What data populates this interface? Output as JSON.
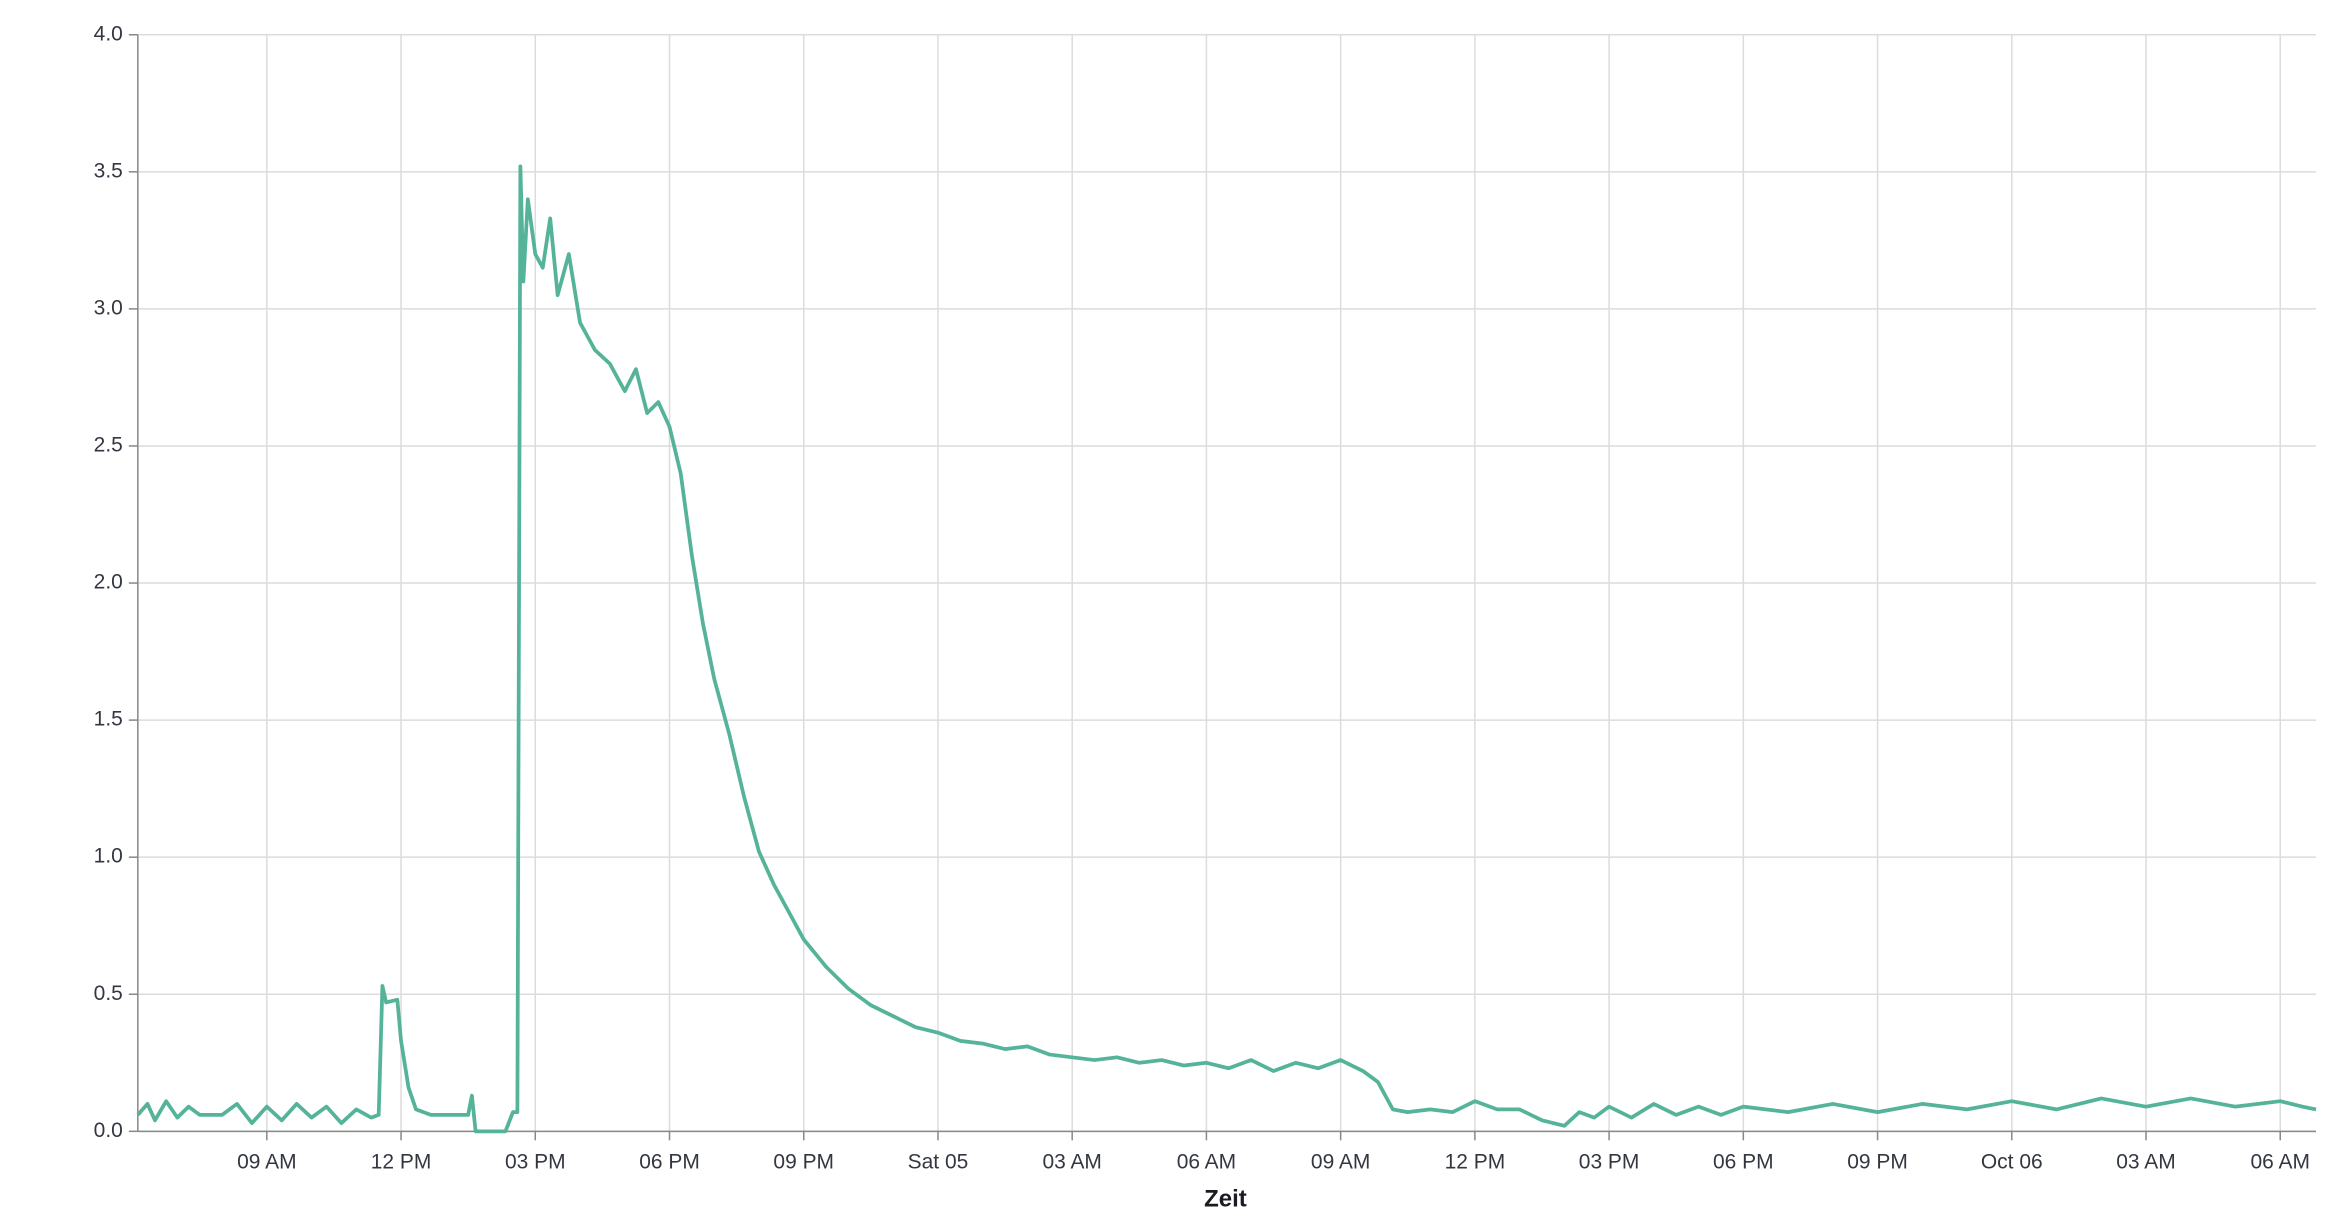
{
  "chart_data": {
    "type": "line",
    "x_label": "Zeit",
    "xlim": [
      "Oct 04 06:07",
      "Oct 06 06:48"
    ],
    "xticks": [
      {
        "value": "Oct 04 09:00",
        "label": "09 AM"
      },
      {
        "value": "Oct 04 12:00",
        "label": "12 PM"
      },
      {
        "value": "Oct 04 15:00",
        "label": "03 PM"
      },
      {
        "value": "Oct 04 18:00",
        "label": "06 PM"
      },
      {
        "value": "Oct 04 21:00",
        "label": "09 PM"
      },
      {
        "value": "Oct 05 00:00",
        "label": "Sat 05"
      },
      {
        "value": "Oct 05 03:00",
        "label": "03 AM"
      },
      {
        "value": "Oct 05 06:00",
        "label": "06 AM"
      },
      {
        "value": "Oct 05 09:00",
        "label": "09 AM"
      },
      {
        "value": "Oct 05 12:00",
        "label": "12 PM"
      },
      {
        "value": "Oct 05 15:00",
        "label": "03 PM"
      },
      {
        "value": "Oct 05 18:00",
        "label": "06 PM"
      },
      {
        "value": "Oct 05 21:00",
        "label": "09 PM"
      },
      {
        "value": "Oct 06 00:00",
        "label": "Oct 06"
      },
      {
        "value": "Oct 06 03:00",
        "label": "03 AM"
      },
      {
        "value": "Oct 06 06:00",
        "label": "06 AM"
      }
    ],
    "ylim": [
      0,
      4
    ],
    "yticks": [
      {
        "value": 0,
        "label": "0.0"
      },
      {
        "value": 0.5,
        "label": "0.5"
      },
      {
        "value": 1,
        "label": "1.0"
      },
      {
        "value": 1.5,
        "label": "1.5"
      },
      {
        "value": 2,
        "label": "2.0"
      },
      {
        "value": 2.5,
        "label": "2.5"
      },
      {
        "value": 3,
        "label": "3.0"
      },
      {
        "value": 3.5,
        "label": "3.5"
      },
      {
        "value": 4,
        "label": "4.0"
      }
    ],
    "grid": true,
    "color": "#54b399",
    "x": [
      "Oct 04 06:07",
      "Oct 04 06:20",
      "Oct 04 06:30",
      "Oct 04 06:45",
      "Oct 04 07:00",
      "Oct 04 07:15",
      "Oct 04 07:30",
      "Oct 04 08:00",
      "Oct 04 08:20",
      "Oct 04 08:40",
      "Oct 04 09:00",
      "Oct 04 09:20",
      "Oct 04 09:40",
      "Oct 04 10:00",
      "Oct 04 10:20",
      "Oct 04 10:40",
      "Oct 04 11:00",
      "Oct 04 11:20",
      "Oct 04 11:30",
      "Oct 04 11:35",
      "Oct 04 11:40",
      "Oct 04 11:55",
      "Oct 04 12:00",
      "Oct 04 12:10",
      "Oct 04 12:20",
      "Oct 04 12:40",
      "Oct 04 13:00",
      "Oct 04 13:30",
      "Oct 04 13:35",
      "Oct 04 13:40",
      "Oct 04 14:20",
      "Oct 04 14:30",
      "Oct 04 14:36",
      "Oct 04 14:40",
      "Oct 04 14:44",
      "Oct 04 14:50",
      "Oct 04 15:00",
      "Oct 04 15:10",
      "Oct 04 15:20",
      "Oct 04 15:30",
      "Oct 04 15:45",
      "Oct 04 16:00",
      "Oct 04 16:20",
      "Oct 04 16:40",
      "Oct 04 17:00",
      "Oct 04 17:15",
      "Oct 04 17:30",
      "Oct 04 17:45",
      "Oct 04 18:00",
      "Oct 04 18:15",
      "Oct 04 18:30",
      "Oct 04 18:45",
      "Oct 04 19:00",
      "Oct 04 19:20",
      "Oct 04 19:40",
      "Oct 04 20:00",
      "Oct 04 20:20",
      "Oct 04 20:40",
      "Oct 04 21:00",
      "Oct 04 21:30",
      "Oct 04 22:00",
      "Oct 04 22:30",
      "Oct 04 23:00",
      "Oct 04 23:30",
      "Oct 05 00:00",
      "Oct 05 00:30",
      "Oct 05 01:00",
      "Oct 05 01:30",
      "Oct 05 02:00",
      "Oct 05 02:30",
      "Oct 05 03:00",
      "Oct 05 03:30",
      "Oct 05 04:00",
      "Oct 05 04:30",
      "Oct 05 05:00",
      "Oct 05 05:30",
      "Oct 05 06:00",
      "Oct 05 06:30",
      "Oct 05 07:00",
      "Oct 05 07:30",
      "Oct 05 08:00",
      "Oct 05 08:30",
      "Oct 05 09:00",
      "Oct 05 09:30",
      "Oct 05 09:50",
      "Oct 05 10:10",
      "Oct 05 10:30",
      "Oct 05 11:00",
      "Oct 05 11:30",
      "Oct 05 12:00",
      "Oct 05 12:30",
      "Oct 05 13:00",
      "Oct 05 13:30",
      "Oct 05 14:00",
      "Oct 05 14:20",
      "Oct 05 14:40",
      "Oct 05 15:00",
      "Oct 05 15:30",
      "Oct 05 16:00",
      "Oct 05 16:30",
      "Oct 05 17:00",
      "Oct 05 17:30",
      "Oct 05 18:00",
      "Oct 05 19:00",
      "Oct 05 20:00",
      "Oct 05 21:00",
      "Oct 05 22:00",
      "Oct 05 23:00",
      "Oct 06 00:00",
      "Oct 06 01:00",
      "Oct 06 02:00",
      "Oct 06 03:00",
      "Oct 06 04:00",
      "Oct 06 05:00",
      "Oct 06 06:00",
      "Oct 06 06:30",
      "Oct 06 06:48"
    ],
    "values": [
      0.06,
      0.1,
      0.04,
      0.11,
      0.05,
      0.09,
      0.06,
      0.06,
      0.1,
      0.03,
      0.09,
      0.04,
      0.1,
      0.05,
      0.09,
      0.03,
      0.08,
      0.05,
      0.06,
      0.53,
      0.47,
      0.48,
      0.33,
      0.16,
      0.08,
      0.06,
      0.06,
      0.06,
      0.13,
      0.0,
      0.0,
      0.07,
      0.07,
      3.52,
      3.1,
      3.4,
      3.2,
      3.15,
      3.33,
      3.05,
      3.2,
      2.95,
      2.85,
      2.8,
      2.7,
      2.78,
      2.62,
      2.66,
      2.57,
      2.4,
      2.1,
      1.85,
      1.65,
      1.45,
      1.22,
      1.02,
      0.9,
      0.8,
      0.7,
      0.6,
      0.52,
      0.46,
      0.42,
      0.38,
      0.36,
      0.33,
      0.32,
      0.3,
      0.31,
      0.28,
      0.27,
      0.26,
      0.27,
      0.25,
      0.26,
      0.24,
      0.25,
      0.23,
      0.26,
      0.22,
      0.25,
      0.23,
      0.26,
      0.22,
      0.18,
      0.08,
      0.07,
      0.08,
      0.07,
      0.11,
      0.08,
      0.08,
      0.04,
      0.02,
      0.07,
      0.05,
      0.09,
      0.05,
      0.1,
      0.06,
      0.09,
      0.06,
      0.09,
      0.07,
      0.1,
      0.07,
      0.1,
      0.08,
      0.11,
      0.08,
      0.12,
      0.09,
      0.12,
      0.09,
      0.11,
      0.09,
      0.08
    ]
  }
}
